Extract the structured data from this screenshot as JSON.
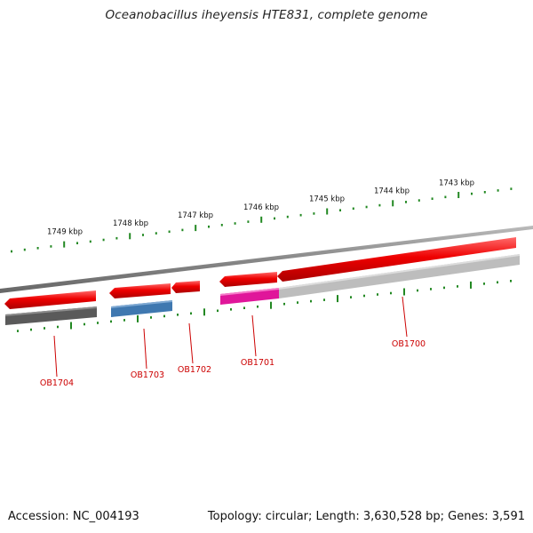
{
  "title": "Oceanobacillus iheyensis HTE831, complete genome",
  "footer": {
    "accession": "Accession: NC_004193",
    "summary": "Topology: circular; Length: 3,630,528 bp; Genes: 3,591"
  },
  "colors": {
    "forward_gene": "#ee0000",
    "backbone": "#8a8a8a",
    "tick": "#228822",
    "label": "#cc0000",
    "track_dark": "#5a5a5a",
    "track_blue": "#3f78b0",
    "track_magenta": "#e0169a",
    "track_light": "#bdbdbd"
  },
  "ticks": [
    "1749 kbp",
    "1748 kbp",
    "1747 kbp",
    "1746 kbp",
    "1745 kbp",
    "1744 kbp",
    "1743 kbp"
  ],
  "genes": [
    {
      "id": "OB1704",
      "strand": "forward",
      "track_color": "track_dark"
    },
    {
      "id": "OB1703",
      "strand": "forward",
      "track_color": "track_blue"
    },
    {
      "id": "OB1702",
      "strand": "forward",
      "track_color": ""
    },
    {
      "id": "OB1701",
      "strand": "forward",
      "track_color": "track_magenta"
    },
    {
      "id": "OB1700",
      "strand": "forward",
      "track_color": "track_light"
    }
  ]
}
